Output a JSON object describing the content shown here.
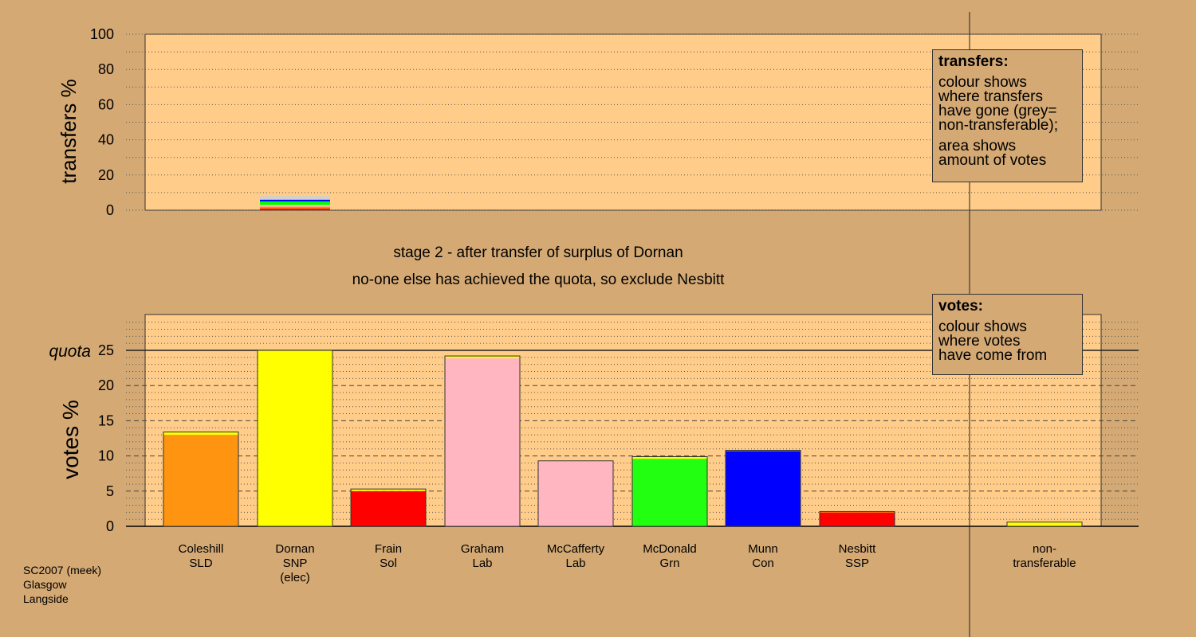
{
  "chart_data": [
    {
      "type": "bar",
      "name": "transfers",
      "ylabel": "transfers %",
      "ylim": [
        0,
        100
      ],
      "yticks": [
        0,
        20,
        40,
        60,
        80,
        100
      ],
      "grid": "dotted",
      "bars": [
        {
          "candidate_index": 1,
          "segments": [
            {
              "color": "#ff0000",
              "value": 1
            },
            {
              "color": "#ff8c00",
              "value": 1
            },
            {
              "color": "#ffb6c1",
              "value": 1
            },
            {
              "color": "#00ff00",
              "value": 2
            },
            {
              "color": "#0000ff",
              "value": 1
            },
            {
              "color": "#d0d0d0",
              "value": 2
            }
          ]
        }
      ]
    },
    {
      "type": "bar",
      "name": "votes",
      "ylabel": "votes %",
      "ylim": [
        0,
        30
      ],
      "yticks": [
        0,
        5,
        10,
        15,
        20,
        25
      ],
      "quota": 25,
      "quota_label": "quota",
      "grid": "dashed",
      "categories": [
        "Coleshill SLD",
        "Dornan SNP (elec)",
        "Frain Sol",
        "Graham Lab",
        "McCafferty Lab",
        "McDonald Grn",
        "Munn Con",
        "Nesbitt SSP",
        "",
        "non-transferable"
      ],
      "bars": [
        {
          "segments": [
            {
              "color": "#ff9410",
              "value": 13.0
            },
            {
              "color": "#ffff00",
              "value": 0.4
            }
          ]
        },
        {
          "segments": [
            {
              "color": "#ffff00",
              "value": 25.0
            }
          ]
        },
        {
          "segments": [
            {
              "color": "#ff0000",
              "value": 5.0
            },
            {
              "color": "#ffff00",
              "value": 0.3
            }
          ]
        },
        {
          "segments": [
            {
              "color": "#ffb6c1",
              "value": 23.9
            },
            {
              "color": "#ffff00",
              "value": 0.3
            }
          ]
        },
        {
          "segments": [
            {
              "color": "#ffb6c1",
              "value": 9.2
            },
            {
              "color": "#ffff00",
              "value": 0.1
            }
          ]
        },
        {
          "segments": [
            {
              "color": "#22ff11",
              "value": 9.6
            },
            {
              "color": "#ffff00",
              "value": 0.3
            }
          ]
        },
        {
          "segments": [
            {
              "color": "#0000ff",
              "value": 10.7
            },
            {
              "color": "#ffff00",
              "value": 0.1
            }
          ]
        },
        {
          "segments": [
            {
              "color": "#ff0000",
              "value": 2.0
            },
            {
              "color": "#ffff00",
              "value": 0.1
            }
          ]
        },
        {
          "segments": []
        },
        {
          "segments": [
            {
              "color": "#ffff00",
              "value": 0.6
            }
          ]
        }
      ]
    }
  ],
  "candidates": [
    [
      "Coleshill",
      "SLD"
    ],
    [
      "Dornan",
      "SNP",
      "(elec)"
    ],
    [
      "Frain",
      "Sol"
    ],
    [
      "Graham",
      "Lab"
    ],
    [
      "McCafferty",
      "Lab"
    ],
    [
      "McDonald",
      "Grn"
    ],
    [
      "Munn",
      "Con"
    ],
    [
      "Nesbitt",
      "SSP"
    ],
    [],
    [
      "non-",
      "transferable"
    ]
  ],
  "stage_title": "stage 2 - after transfer of surplus of Dornan",
  "stage_subtitle": "no-one else has achieved the quota, so exclude Nesbitt",
  "legend_transfers": {
    "heading": "transfers:",
    "line1": "colour shows where transfers have gone (grey= non-transferable);",
    "line1_parts": [
      "colour shows",
      "where transfers",
      "have gone (grey=",
      "non-transferable);"
    ],
    "line2_parts": [
      "area shows",
      "amount of votes"
    ]
  },
  "legend_votes": {
    "heading": "votes:",
    "lines": [
      "colour shows",
      "where votes",
      "have come from"
    ]
  },
  "footer": [
    "SC2007 (meek)",
    "Glasgow",
    "Langside"
  ],
  "colors": {
    "background": "#d4a974",
    "panel": "#ffcc8a"
  }
}
